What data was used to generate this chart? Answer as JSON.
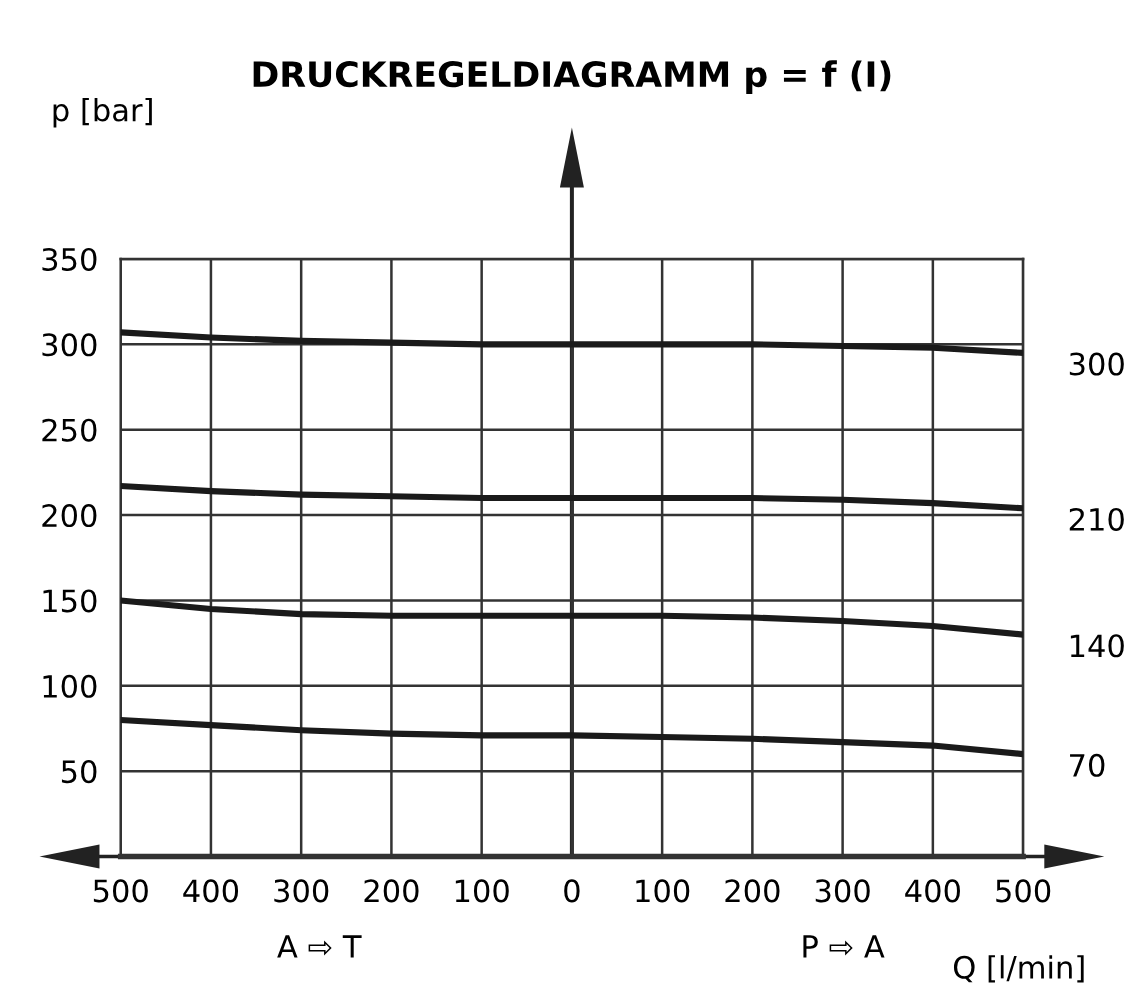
{
  "chart_data": {
    "type": "line",
    "title": "DRUCKREGELDIAGRAMM p = f (I)",
    "xlabel": "Q [l/min]",
    "ylabel": "p [bar]",
    "categories": [
      "500",
      "400",
      "300",
      "200",
      "100",
      "0",
      "100",
      "200",
      "300",
      "400",
      "500"
    ],
    "series": [
      {
        "name": "300",
        "color": "#1a1a1a",
        "values": [
          307,
          304,
          302,
          301,
          300,
          300,
          300,
          300,
          299,
          298,
          295
        ]
      },
      {
        "name": "210",
        "color": "#1a1a1a",
        "values": [
          217,
          214,
          212,
          211,
          210,
          210,
          210,
          210,
          209,
          207,
          204
        ]
      },
      {
        "name": "140",
        "color": "#1a1a1a",
        "values": [
          150,
          145,
          142,
          141,
          141,
          141,
          141,
          140,
          138,
          135,
          130
        ]
      },
      {
        "name": "70",
        "color": "#1a1a1a",
        "values": [
          80,
          77,
          74,
          72,
          71,
          71,
          70,
          69,
          67,
          65,
          60
        ]
      }
    ],
    "ylim": [
      0,
      350
    ],
    "yticks": [
      {
        "value": 0,
        "label": null
      },
      50,
      100,
      150,
      200,
      250,
      300,
      350
    ],
    "annotations": [
      "A ⇨ T",
      "P ⇨ A"
    ],
    "grid": true,
    "legend": false,
    "marker": "none",
    "line_style": "solid"
  }
}
